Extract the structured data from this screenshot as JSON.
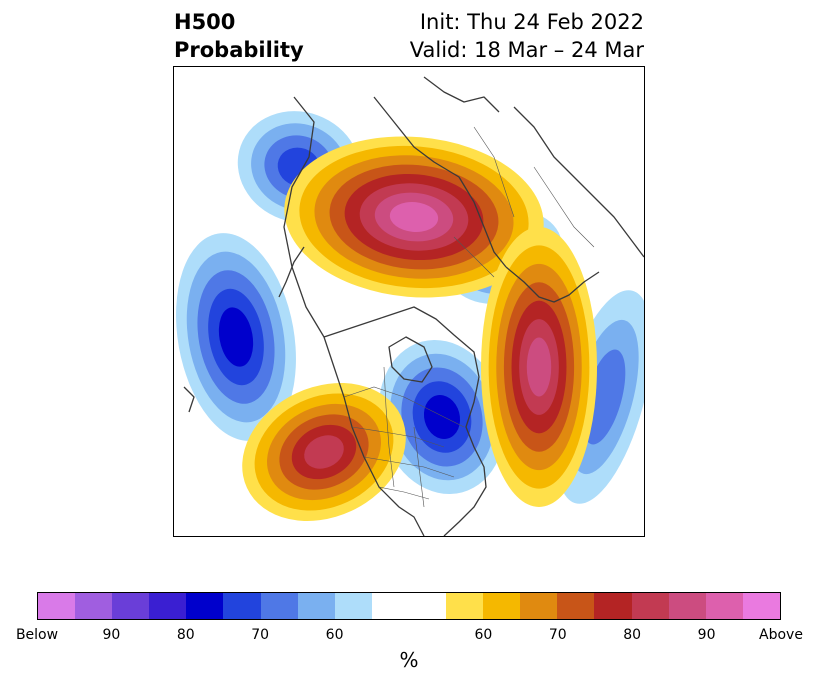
{
  "title": {
    "left_line1": "H500",
    "left_line2": "Probability",
    "right_line1": "Init: Thu 24 Feb 2022",
    "right_line2": "Valid: 18 Mar – 24 Mar"
  },
  "colorbar": {
    "colors": [
      "#d97ae8",
      "#a05ee0",
      "#6a3ed8",
      "#3a1fd2",
      "#0000cc",
      "#2244dd",
      "#4f78e6",
      "#7ab0f0",
      "#aeddfa",
      "#ffffff",
      "#ffffff",
      "#ffe04a",
      "#f5b800",
      "#e08a10",
      "#c85518",
      "#b42424",
      "#c23a52",
      "#cc4c80",
      "#dd60ad",
      "#ea7ae0"
    ],
    "tick_labels": [
      "Below",
      "90",
      "80",
      "70",
      "60",
      "60",
      "70",
      "80",
      "90",
      "Above"
    ],
    "unit": "%"
  },
  "map": {
    "anomalies": [
      {
        "kind": "below",
        "max_level": 5
      },
      {
        "kind": "below",
        "max_level": 4
      },
      {
        "kind": "below",
        "max_level": 5
      },
      {
        "kind": "below",
        "max_level": 4
      },
      {
        "kind": "below",
        "max_level": 3
      },
      {
        "kind": "above",
        "max_level": 8
      },
      {
        "kind": "above",
        "max_level": 6
      },
      {
        "kind": "above",
        "max_level": 7
      }
    ]
  }
}
